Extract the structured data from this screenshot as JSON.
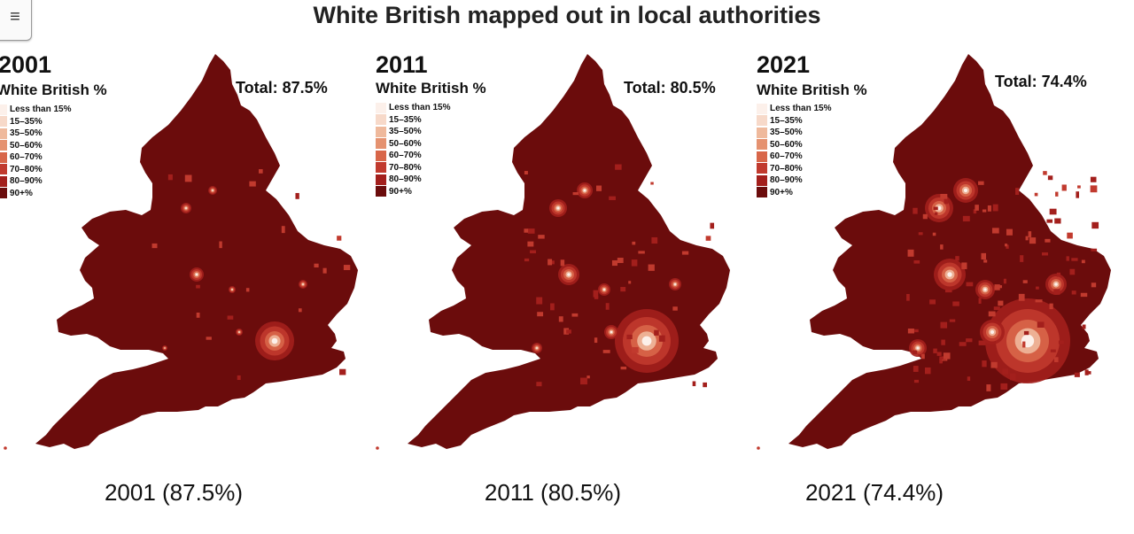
{
  "title": "White British mapped out in local authorities",
  "legend": {
    "title": "White British %",
    "items": [
      {
        "label": "Less than 15%",
        "color": "#fcf0ea"
      },
      {
        "label": "15–35%",
        "color": "#f7d9c9"
      },
      {
        "label": "35–50%",
        "color": "#efb99c"
      },
      {
        "label": "50–60%",
        "color": "#e59270"
      },
      {
        "label": "60–70%",
        "color": "#d86649"
      },
      {
        "label": "70–80%",
        "color": "#c13a2e"
      },
      {
        "label": "80–90%",
        "color": "#a31f1c"
      },
      {
        "label": "90+%",
        "color": "#6b0c0c"
      }
    ]
  },
  "panels": [
    {
      "year": "2001",
      "total": "Total: 87.5%",
      "caption": "2001 (87.5%)"
    },
    {
      "year": "2011",
      "total": "Total: 80.5%",
      "caption": "2011 (80.5%)"
    },
    {
      "year": "2021",
      "total": "Total: 74.4%",
      "caption": "2021 (74.4%)"
    }
  ],
  "map": {
    "base_color": "#6b0c0c",
    "region": "England and Wales"
  }
}
